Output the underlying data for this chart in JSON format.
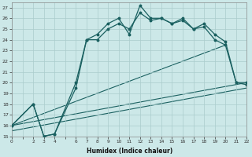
{
  "xlabel": "Humidex (Indice chaleur)",
  "bg_color": "#cce8e8",
  "grid_color": "#aacccc",
  "line_color": "#1a6060",
  "xlim": [
    0,
    22
  ],
  "ylim": [
    15,
    27.5
  ],
  "xticks_all": [
    0,
    1,
    2,
    3,
    4,
    5,
    6,
    7,
    8,
    9,
    10,
    11,
    12,
    13,
    14,
    15,
    16,
    17,
    18,
    19,
    20,
    21,
    22
  ],
  "xticks_labeled": [
    0,
    2,
    3,
    4,
    6,
    7,
    8,
    9,
    10,
    11,
    12,
    13,
    14,
    15,
    16,
    17,
    18,
    19,
    20,
    21,
    22
  ],
  "yticks": [
    15,
    16,
    17,
    18,
    19,
    20,
    21,
    22,
    23,
    24,
    25,
    26,
    27
  ],
  "curve1_x": [
    0,
    2,
    3,
    4,
    6,
    7,
    8,
    9,
    10,
    11,
    12,
    13,
    14,
    15,
    16,
    17,
    18,
    19,
    20,
    21,
    22
  ],
  "curve1_y": [
    16,
    18,
    15,
    15.2,
    19.5,
    24.0,
    24.5,
    25.5,
    26.0,
    24.5,
    27.2,
    26.0,
    26.0,
    25.5,
    26.0,
    25.0,
    25.5,
    24.5,
    23.8,
    20.0,
    20.0
  ],
  "curve2_x": [
    0,
    2,
    3,
    4,
    6,
    7,
    8,
    9,
    10,
    11,
    12,
    13,
    14,
    15,
    16,
    17,
    18,
    19,
    20,
    21,
    22
  ],
  "curve2_y": [
    16,
    18,
    15,
    15.2,
    20.0,
    24.0,
    24.0,
    25.0,
    25.5,
    25.0,
    26.5,
    25.8,
    26.0,
    25.5,
    25.8,
    25.0,
    25.2,
    24.0,
    23.5,
    20.0,
    19.8
  ],
  "line3_x": [
    0,
    20
  ],
  "line3_y": [
    16,
    23.5
  ],
  "line4_x": [
    0,
    22
  ],
  "line4_y": [
    16,
    20.0
  ],
  "line5_x": [
    0,
    22
  ],
  "line5_y": [
    15.5,
    19.5
  ]
}
